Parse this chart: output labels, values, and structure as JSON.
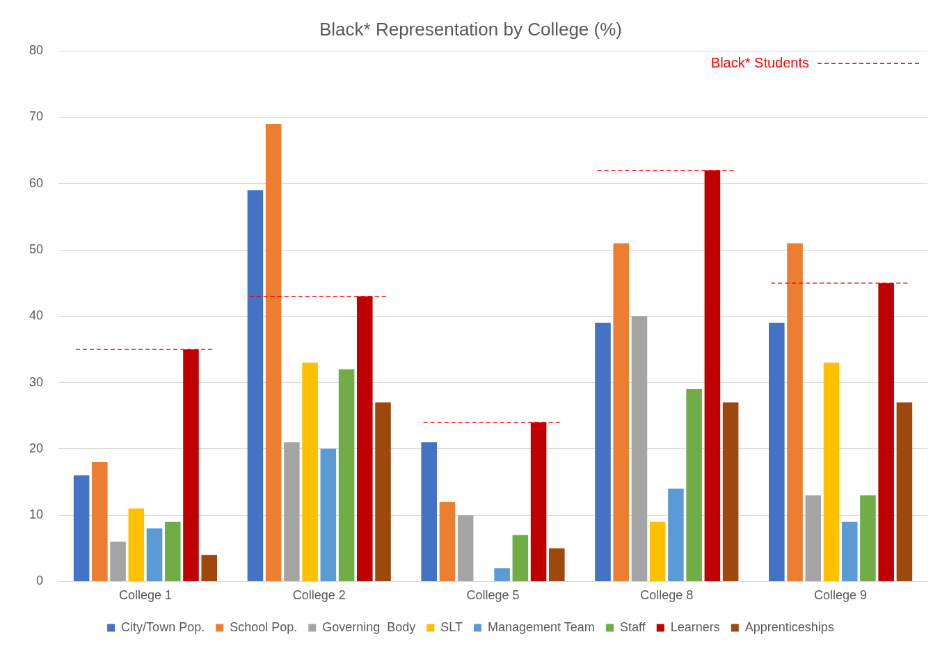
{
  "chart_data": {
    "type": "bar",
    "title": "Black* Representation by College (%)",
    "categories": [
      "College 1",
      "College 2",
      "College 5",
      "College 8",
      "College 9"
    ],
    "series": [
      {
        "name": "City/Town Pop.",
        "color": "#4472c4",
        "values": [
          16,
          59,
          21,
          39,
          39
        ]
      },
      {
        "name": "School Pop.",
        "color": "#ed7d31",
        "values": [
          18,
          69,
          12,
          51,
          51
        ]
      },
      {
        "name": "Governing  Body",
        "color": "#a5a5a5",
        "values": [
          6,
          21,
          10,
          40,
          13
        ]
      },
      {
        "name": "SLT",
        "color": "#ffc000",
        "values": [
          11,
          33,
          0,
          9,
          33
        ]
      },
      {
        "name": "Management Team",
        "color": "#5b9bd5",
        "values": [
          8,
          20,
          2,
          14,
          9
        ]
      },
      {
        "name": "Staff",
        "color": "#70ad47",
        "values": [
          9,
          32,
          7,
          29,
          13
        ]
      },
      {
        "name": "Learners",
        "color": "#c00000",
        "values": [
          35,
          43,
          24,
          62,
          45
        ]
      },
      {
        "name": "Apprenticeships",
        "color": "#9e480e",
        "values": [
          4,
          27,
          5,
          27,
          27
        ]
      }
    ],
    "ref_lines": [
      {
        "axis": "y",
        "value": 35,
        "color": "#ff0000",
        "line_style": "dashed"
      },
      {
        "axis": "y",
        "value": 43,
        "color": "#ff0000",
        "line_style": "dashed"
      },
      {
        "axis": "y",
        "value": 24,
        "color": "#ff0000",
        "line_style": "dashed"
      },
      {
        "axis": "y",
        "value": 62,
        "color": "#ff0000",
        "line_style": "dashed"
      },
      {
        "axis": "y",
        "value": 45,
        "color": "#ff0000",
        "line_style": "dashed"
      }
    ],
    "annotations": [
      "Black* Students"
    ],
    "ylim": [
      0,
      80
    ],
    "yticks": [
      0,
      10,
      20,
      30,
      40,
      50,
      60,
      70,
      80
    ],
    "grid": "y",
    "legend": "bottom"
  }
}
